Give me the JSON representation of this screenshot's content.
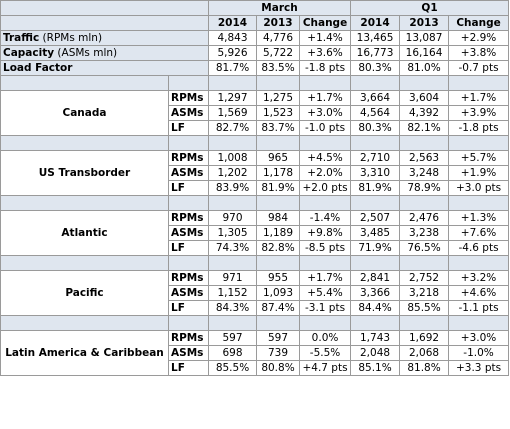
{
  "header": {
    "march": "March",
    "q1": "Q1",
    "columns": [
      "2014",
      "2013",
      "Change",
      "2014",
      "2013",
      "Change"
    ]
  },
  "system": {
    "traffic": {
      "label_bold": "Traffic",
      "label_rest": " (RPMs mln)",
      "values": [
        "4,843",
        "4,776",
        "+1.4%",
        "13,465",
        "13,087",
        "+2.9%"
      ]
    },
    "capacity": {
      "label_bold": "Capacity",
      "label_rest": " (ASMs mln)",
      "values": [
        "5,926",
        "5,722",
        "+3.6%",
        "16,773",
        "16,164",
        "+3.8%"
      ]
    },
    "load_factor": {
      "label_bold": "Load Factor",
      "values": [
        "81.7%",
        "83.5%",
        "-1.8 pts",
        "80.3%",
        "81.0%",
        "-0.7 pts"
      ]
    }
  },
  "regions": [
    {
      "name": "Canada",
      "rows": [
        {
          "metric": "RPMs",
          "values": [
            "1,297",
            "1,275",
            "+1.7%",
            "3,664",
            "3,604",
            "+1.7%"
          ]
        },
        {
          "metric": "ASMs",
          "values": [
            "1,569",
            "1,523",
            "+3.0%",
            "4,564",
            "4,392",
            "+3.9%"
          ]
        },
        {
          "metric": "LF",
          "values": [
            "82.7%",
            "83.7%",
            "-1.0 pts",
            "80.3%",
            "82.1%",
            "-1.8 pts"
          ]
        }
      ]
    },
    {
      "name": "US Transborder",
      "rows": [
        {
          "metric": "RPMs",
          "values": [
            "1,008",
            "965",
            "+4.5%",
            "2,710",
            "2,563",
            "+5.7%"
          ]
        },
        {
          "metric": "ASMs",
          "values": [
            "1,202",
            "1,178",
            "+2.0%",
            "3,310",
            "3,248",
            "+1.9%"
          ]
        },
        {
          "metric": "LF",
          "values": [
            "83.9%",
            "81.9%",
            "+2.0 pts",
            "81.9%",
            "78.9%",
            "+3.0 pts"
          ]
        }
      ]
    },
    {
      "name": "Atlantic",
      "rows": [
        {
          "metric": "RPMs",
          "values": [
            "970",
            "984",
            "-1.4%",
            "2,507",
            "2,476",
            "+1.3%"
          ]
        },
        {
          "metric": "ASMs",
          "values": [
            "1,305",
            "1,189",
            "+9.8%",
            "3,485",
            "3,238",
            "+7.6%"
          ]
        },
        {
          "metric": "LF",
          "values": [
            "74.3%",
            "82.8%",
            "-8.5 pts",
            "71.9%",
            "76.5%",
            "-4.6 pts"
          ]
        }
      ]
    },
    {
      "name": "Pacific",
      "rows": [
        {
          "metric": "RPMs",
          "values": [
            "971",
            "955",
            "+1.7%",
            "2,841",
            "2,752",
            "+3.2%"
          ]
        },
        {
          "metric": "ASMs",
          "values": [
            "1,152",
            "1,093",
            "+5.4%",
            "3,366",
            "3,218",
            "+4.6%"
          ]
        },
        {
          "metric": "LF",
          "values": [
            "84.3%",
            "87.4%",
            "-3.1 pts",
            "84.4%",
            "85.5%",
            "-1.1 pts"
          ]
        }
      ]
    },
    {
      "name": "Latin America & Caribbean",
      "rows": [
        {
          "metric": "RPMs",
          "values": [
            "597",
            "597",
            "0.0%",
            "1,743",
            "1,692",
            "+3.0%"
          ]
        },
        {
          "metric": "ASMs",
          "values": [
            "698",
            "739",
            "-5.5%",
            "2,048",
            "2,068",
            "-1.0%"
          ]
        },
        {
          "metric": "LF",
          "values": [
            "85.5%",
            "80.8%",
            "+4.7 pts",
            "85.1%",
            "81.8%",
            "+3.3 pts"
          ]
        }
      ]
    }
  ]
}
